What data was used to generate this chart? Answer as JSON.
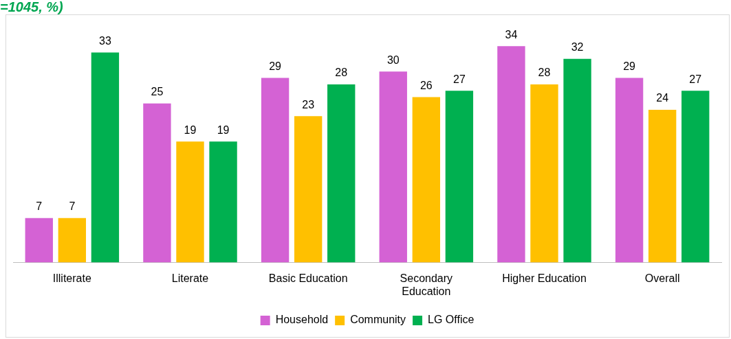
{
  "chart_data": {
    "type": "bar",
    "title": "=1045, %)",
    "categories": [
      "Illiterate",
      "Literate",
      "Basic Education",
      "Secondary Education",
      "Higher Education",
      "Overall"
    ],
    "series": [
      {
        "name": "Household",
        "color": "#d462d4",
        "values": [
          7,
          25,
          29,
          30,
          34,
          29
        ]
      },
      {
        "name": "Community",
        "color": "#ffc000",
        "values": [
          7,
          19,
          23,
          26,
          28,
          24
        ]
      },
      {
        "name": "LG Office",
        "color": "#00b050",
        "values": [
          33,
          19,
          28,
          27,
          32,
          27
        ]
      }
    ],
    "data_labels": true,
    "legend": "bottom",
    "grid": false
  }
}
